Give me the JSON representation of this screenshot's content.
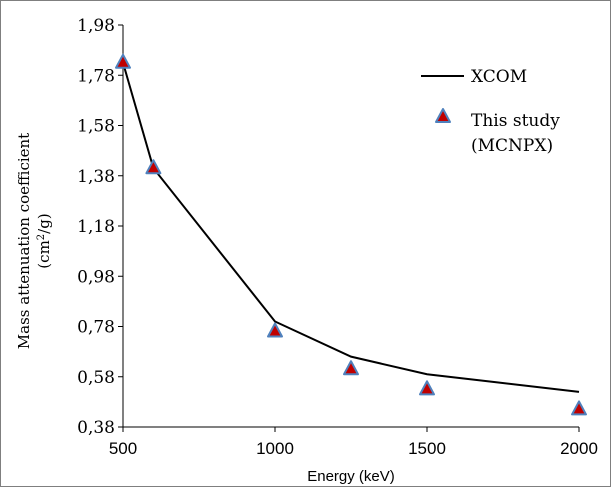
{
  "chart_data": {
    "type": "line",
    "xlabel": "Energy (keV)",
    "ylabel_line1": "Mass attenuation coefficient",
    "ylabel_line2_prefix": "(cm",
    "ylabel_line2_sup": "2",
    "ylabel_line2_suffix": "/g)",
    "xlim": [
      500,
      2000
    ],
    "ylim": [
      0.38,
      1.98
    ],
    "x_ticks": [
      500,
      1000,
      1500,
      2000
    ],
    "x_tick_labels": [
      "500",
      "1000",
      "1500",
      "2000"
    ],
    "y_ticks": [
      0.38,
      0.58,
      0.78,
      0.98,
      1.18,
      1.38,
      1.58,
      1.78,
      1.98
    ],
    "y_tick_labels": [
      "0,38",
      "0,58",
      "0,78",
      "0,98",
      "1,18",
      "1,38",
      "1,58",
      "1,78",
      "1,98"
    ],
    "grid": false,
    "legend_position": "top-right",
    "series": [
      {
        "name": "XCOM",
        "kind": "line",
        "color": "#000000",
        "x": [
          500,
          600,
          1000,
          1250,
          1500,
          2000
        ],
        "y": [
          1.83,
          1.41,
          0.8,
          0.66,
          0.59,
          0.52
        ]
      },
      {
        "name_line1": "This study",
        "name_line2": "(MCNPX)",
        "kind": "marker",
        "marker": "triangle",
        "fill_color": "#c00000",
        "edge_color": "#4f81bd",
        "x": [
          500,
          600,
          1000,
          1250,
          1500,
          2000
        ],
        "y": [
          1.83,
          1.41,
          0.76,
          0.61,
          0.53,
          0.45
        ]
      }
    ]
  }
}
